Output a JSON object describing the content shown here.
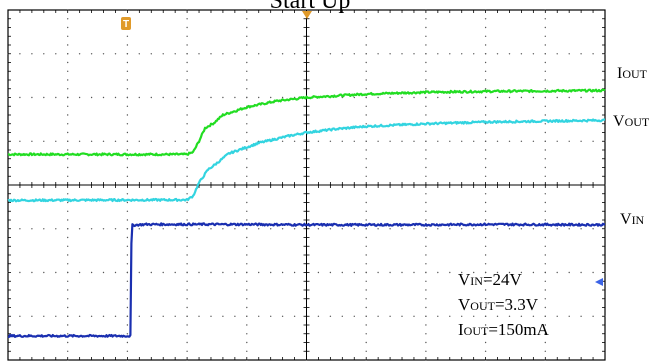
{
  "title": "Start Up",
  "chart_data": {
    "type": "line",
    "title": "Start Up",
    "xlabel": "",
    "ylabel": "",
    "grid": true,
    "divisions": {
      "x": 10,
      "y": 8
    },
    "xlim": [
      0,
      10
    ],
    "ylim": [
      0,
      8
    ],
    "series": [
      {
        "name_main": "I",
        "name_sub": "OUT",
        "color": "#22dd22",
        "points": [
          [
            0,
            4.7
          ],
          [
            3.0,
            4.7
          ],
          [
            3.1,
            4.75
          ],
          [
            3.2,
            5.0
          ],
          [
            3.3,
            5.3
          ],
          [
            3.45,
            5.42
          ],
          [
            3.6,
            5.6
          ],
          [
            4.0,
            5.78
          ],
          [
            4.5,
            5.92
          ],
          [
            5.0,
            6.0
          ],
          [
            5.5,
            6.04
          ],
          [
            6.0,
            6.08
          ],
          [
            7.0,
            6.12
          ],
          [
            8.0,
            6.14
          ],
          [
            9.0,
            6.15
          ],
          [
            10.0,
            6.16
          ]
        ]
      },
      {
        "name_main": "V",
        "name_sub": "OUT",
        "color": "#33d4e0",
        "points": [
          [
            0,
            3.65
          ],
          [
            3.0,
            3.66
          ],
          [
            3.1,
            3.75
          ],
          [
            3.2,
            4.05
          ],
          [
            3.35,
            4.35
          ],
          [
            3.5,
            4.5
          ],
          [
            3.7,
            4.72
          ],
          [
            4.2,
            4.96
          ],
          [
            4.7,
            5.12
          ],
          [
            5.0,
            5.2
          ],
          [
            5.5,
            5.28
          ],
          [
            6.0,
            5.34
          ],
          [
            7.0,
            5.4
          ],
          [
            8.0,
            5.44
          ],
          [
            9.0,
            5.46
          ],
          [
            10.0,
            5.48
          ]
        ]
      },
      {
        "name_main": "V",
        "name_sub": "IN",
        "color": "#1a2fb0",
        "points": [
          [
            0,
            0.55
          ],
          [
            2.05,
            0.55
          ],
          [
            2.07,
            3.08
          ],
          [
            2.3,
            3.1
          ],
          [
            4.0,
            3.1
          ],
          [
            5.0,
            3.09
          ],
          [
            7.0,
            3.09
          ],
          [
            8.0,
            3.1
          ],
          [
            10.0,
            3.09
          ]
        ]
      }
    ]
  },
  "annotation": {
    "lines": [
      {
        "main": "V",
        "sub": "IN",
        "rest": "=24V"
      },
      {
        "main": "V",
        "sub": "OUT",
        "rest": "=3.3V"
      },
      {
        "main": "I",
        "sub": "OUT",
        "rest": "=150mA"
      }
    ]
  },
  "markers": {
    "trigger_letter": "T",
    "trigger_color": "#e09a2a",
    "center_marker_color": "#e09a2a",
    "level_arrow_color": "#3b63e6"
  }
}
